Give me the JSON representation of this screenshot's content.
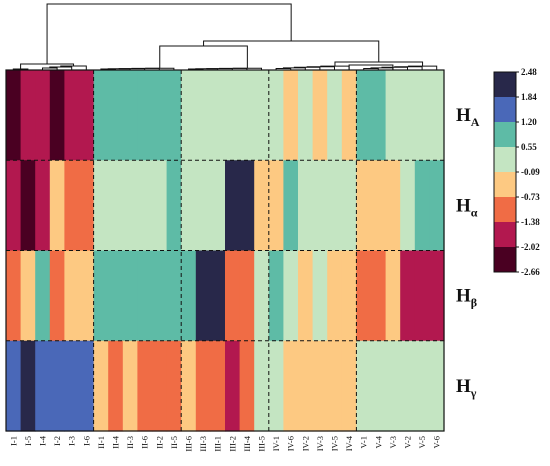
{
  "chart_data": {
    "type": "heatmap",
    "columns": [
      "I-1",
      "I-5",
      "I-4",
      "I-2",
      "I-3",
      "I-6",
      "II-1",
      "II-4",
      "II-3",
      "II-6",
      "II-2",
      "II-5",
      "III-6",
      "III-3",
      "III-1",
      "III-2",
      "III-4",
      "III-5",
      "IV-1",
      "IV-6",
      "IV-2",
      "IV-3",
      "IV-5",
      "IV-4",
      "V-1",
      "V-4",
      "V-3",
      "V-2",
      "V-5",
      "V-6"
    ],
    "rows": [
      {
        "label": "H",
        "sub": "A",
        "values": [
          -2.66,
          -2.02,
          -2.02,
          -2.66,
          -2.02,
          -2.02,
          0.55,
          0.55,
          0.55,
          0.55,
          0.55,
          0.55,
          -0.09,
          -0.09,
          -0.09,
          -0.09,
          -0.09,
          -0.09,
          -0.09,
          -0.73,
          -0.09,
          -0.73,
          -0.09,
          -0.73,
          0.55,
          0.55,
          -0.09,
          -0.09,
          -0.09,
          -0.09
        ]
      },
      {
        "label": "H",
        "sub": "α",
        "values": [
          -2.02,
          -2.66,
          -2.02,
          -0.73,
          -1.38,
          -1.38,
          -0.09,
          -0.09,
          -0.09,
          -0.09,
          -0.09,
          0.55,
          -0.09,
          -0.09,
          -0.09,
          2.48,
          1.84,
          -0.73,
          -0.73,
          0.55,
          -0.09,
          -0.09,
          -0.09,
          -0.09,
          -0.73,
          -0.73,
          -0.73,
          -0.09,
          0.55,
          0.55
        ]
      },
      {
        "label": "H",
        "sub": "β",
        "values": [
          -1.38,
          -0.73,
          0.55,
          -1.38,
          -0.73,
          -0.73,
          0.55,
          0.55,
          0.55,
          0.55,
          0.55,
          0.55,
          0.55,
          1.84,
          1.84,
          -1.38,
          -1.38,
          -0.09,
          0.55,
          -0.09,
          -0.73,
          -0.09,
          -0.73,
          -0.73,
          -1.38,
          -1.38,
          -0.73,
          -2.02,
          -2.02,
          -2.02
        ]
      },
      {
        "label": "H",
        "sub": "γ",
        "values": [
          1.2,
          2.48,
          1.2,
          1.2,
          1.2,
          1.2,
          -0.73,
          -1.38,
          -0.73,
          -1.38,
          -1.38,
          -1.38,
          -0.73,
          -1.38,
          -1.38,
          -2.02,
          -1.38,
          -0.09,
          -0.09,
          -0.73,
          -0.73,
          -0.73,
          -0.73,
          -0.73,
          -0.09,
          -0.09,
          -0.09,
          -0.09,
          -0.09,
          -0.09
        ]
      }
    ],
    "colorbar": {
      "ticks": [
        "2.48",
        "1.84",
        "1.20",
        "0.55",
        "-0.09",
        "-0.73",
        "-1.38",
        "-2.02",
        "-2.66"
      ],
      "colors": [
        "#28284a",
        "#4a68b8",
        "#5ebba6",
        "#c4e5c2",
        "#fdc982",
        "#f06c45",
        "#b2184f",
        "#4a0022"
      ]
    },
    "column_groups": [
      6,
      12,
      18,
      24
    ],
    "grid": "dashed group separators",
    "dendrogram": "top"
  }
}
